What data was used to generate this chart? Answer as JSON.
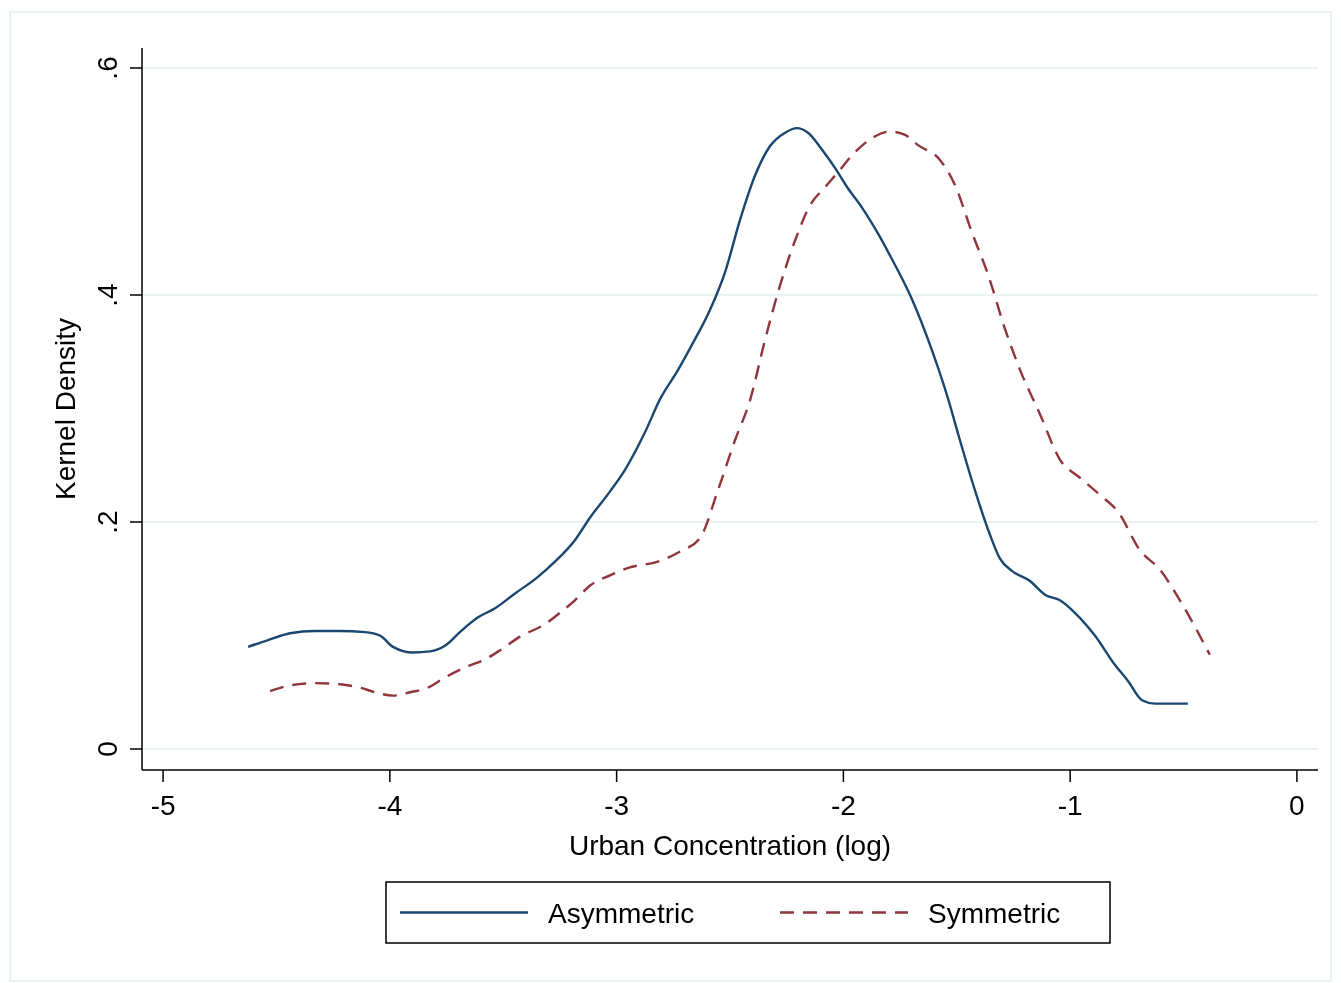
{
  "chart_data": {
    "type": "line",
    "xlabel": "Urban Concentration (log)",
    "ylabel": "Kernel Density",
    "xlim": [
      -5.093,
      0.093
    ],
    "ylim": [
      -0.0185,
      0.6176
    ],
    "xticks": [
      -5,
      -4,
      -3,
      -2,
      -1,
      0
    ],
    "yticks": [
      {
        "value": 0,
        "label": "0"
      },
      {
        "value": 0.2,
        "label": ".2"
      },
      {
        "value": 0.4,
        "label": ".4"
      },
      {
        "value": 0.6,
        "label": ".6"
      }
    ],
    "grid": "y",
    "legend": "bottom",
    "series": [
      {
        "name": "Asymmetric",
        "color": "#1a476f",
        "line_style": "solid",
        "x": [
          -4.625,
          -4.537,
          -4.44,
          -4.33,
          -4.22,
          -4.11,
          -4.044,
          -3.986,
          -3.898,
          -3.823,
          -3.757,
          -3.691,
          -3.611,
          -3.536,
          -3.448,
          -3.351,
          -3.272,
          -3.184,
          -3.117,
          -3.029,
          -2.963,
          -2.875,
          -2.809,
          -2.729,
          -2.668,
          -2.588,
          -2.522,
          -2.456,
          -2.39,
          -2.324,
          -2.257,
          -2.205,
          -2.156,
          -2.094,
          -2.037,
          -1.98,
          -1.918,
          -1.847,
          -1.795,
          -1.697,
          -1.618,
          -1.539,
          -1.486,
          -1.42,
          -1.354,
          -1.31,
          -1.257,
          -1.177,
          -1.111,
          -1.045,
          -0.979,
          -0.891,
          -0.802,
          -0.745,
          -0.683,
          -0.626,
          -0.481
        ],
        "values": [
          0.09,
          0.096,
          0.102,
          0.104,
          0.104,
          0.103,
          0.1,
          0.09,
          0.085,
          0.086,
          0.091,
          0.103,
          0.116,
          0.124,
          0.137,
          0.151,
          0.165,
          0.184,
          0.204,
          0.227,
          0.246,
          0.279,
          0.308,
          0.334,
          0.356,
          0.387,
          0.42,
          0.466,
          0.505,
          0.531,
          0.543,
          0.547,
          0.543,
          0.528,
          0.512,
          0.494,
          0.477,
          0.454,
          0.435,
          0.396,
          0.356,
          0.309,
          0.272,
          0.228,
          0.189,
          0.168,
          0.157,
          0.148,
          0.136,
          0.131,
          0.12,
          0.1,
          0.074,
          0.06,
          0.043,
          0.04,
          0.04
        ]
      },
      {
        "name": "Symmetric",
        "color": "#90353b",
        "line_style": "dashed",
        "x": [
          -4.528,
          -4.44,
          -4.33,
          -4.22,
          -4.131,
          -4.065,
          -3.986,
          -3.911,
          -3.832,
          -3.757,
          -3.668,
          -3.58,
          -3.514,
          -3.426,
          -3.316,
          -3.25,
          -3.184,
          -3.117,
          -3.029,
          -2.941,
          -2.818,
          -2.72,
          -2.632,
          -2.553,
          -2.478,
          -2.412,
          -2.346,
          -2.28,
          -2.213,
          -2.147,
          -2.081,
          -2.024,
          -1.962,
          -1.883,
          -1.795,
          -1.728,
          -1.671,
          -1.574,
          -1.508,
          -1.433,
          -1.362,
          -1.287,
          -1.221,
          -1.133,
          -1.045,
          -0.957,
          -0.869,
          -0.789,
          -0.692,
          -0.604,
          -0.516,
          -0.384
        ],
        "values": [
          0.051,
          0.056,
          0.058,
          0.057,
          0.054,
          0.05,
          0.047,
          0.05,
          0.054,
          0.063,
          0.072,
          0.079,
          0.087,
          0.099,
          0.11,
          0.12,
          0.131,
          0.144,
          0.153,
          0.16,
          0.165,
          0.174,
          0.186,
          0.228,
          0.272,
          0.307,
          0.36,
          0.408,
          0.448,
          0.479,
          0.495,
          0.508,
          0.523,
          0.537,
          0.544,
          0.541,
          0.532,
          0.519,
          0.497,
          0.455,
          0.418,
          0.37,
          0.334,
          0.295,
          0.255,
          0.239,
          0.224,
          0.209,
          0.175,
          0.158,
          0.131,
          0.083
        ]
      }
    ]
  }
}
